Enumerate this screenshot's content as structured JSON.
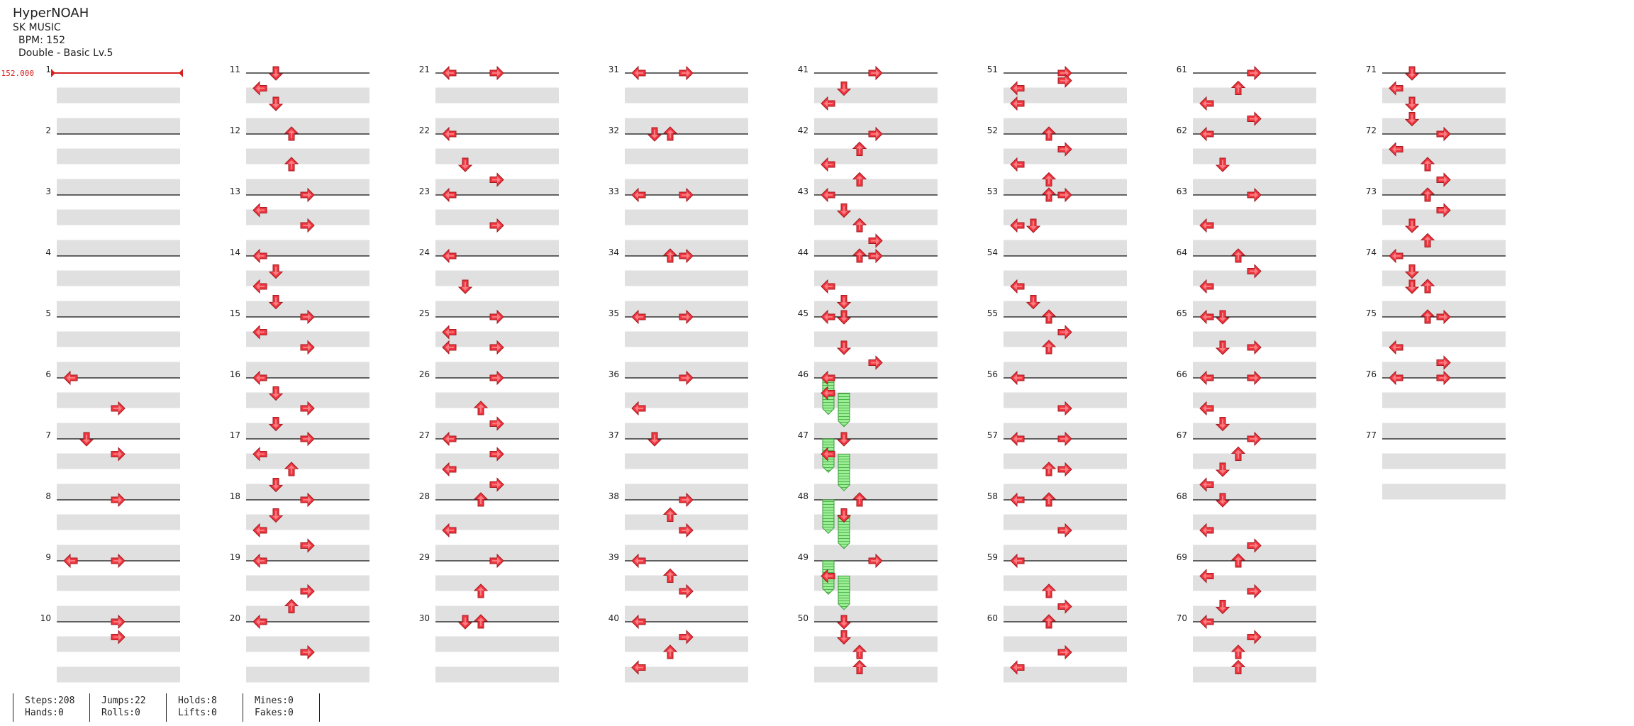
{
  "song": {
    "title": "HyperNOAH",
    "artist": "SK MUSIC",
    "bpm_text": "BPM: 152",
    "difficulty_text": "Double - Basic Lv.5"
  },
  "bpm_marker": "152.000",
  "measure_count": 77,
  "stats": [
    {
      "a": "Steps:208",
      "b": "Hands:0"
    },
    {
      "a": "Jumps:22",
      "b": "Rolls:0"
    },
    {
      "a": "Holds:8",
      "b": "Lifts:0"
    },
    {
      "a": "Mines:0",
      "b": "Fakes:0"
    }
  ],
  "colors": {
    "arrow": "#f0363f",
    "hold": "#8ee88a",
    "lane": "#e0e0e0",
    "bpm": "#d62020"
  },
  "icons": {
    "note": "arrow-icon",
    "hold": "hold-icon"
  },
  "notes": [
    {
      "m": 6,
      "b": 0,
      "d": "left"
    },
    {
      "m": 6,
      "b": 2,
      "d": "right"
    },
    {
      "m": 7,
      "b": 0,
      "d": "down"
    },
    {
      "m": 7,
      "b": 1,
      "d": "right"
    },
    {
      "m": 8,
      "b": 0,
      "d": "right"
    },
    {
      "m": 9,
      "b": 0,
      "d": "right"
    },
    {
      "m": 9,
      "b": 0,
      "d": "left"
    },
    {
      "m": 10,
      "b": 0,
      "d": "right"
    },
    {
      "m": 10,
      "b": 1,
      "d": "right"
    },
    {
      "m": 11,
      "b": 0,
      "d": "down"
    },
    {
      "m": 11,
      "b": 1,
      "d": "left"
    },
    {
      "m": 11,
      "b": 2,
      "d": "down"
    },
    {
      "m": 12,
      "b": 0,
      "d": "up"
    },
    {
      "m": 12,
      "b": 2,
      "d": "up"
    },
    {
      "m": 13,
      "b": 0,
      "d": "right"
    },
    {
      "m": 13,
      "b": 1,
      "d": "left"
    },
    {
      "m": 13,
      "b": 2,
      "d": "right"
    },
    {
      "m": 14,
      "b": 0,
      "d": "left"
    },
    {
      "m": 14,
      "b": 1,
      "d": "down"
    },
    {
      "m": 14,
      "b": 2,
      "d": "left"
    },
    {
      "m": 14,
      "b": 3,
      "d": "down"
    },
    {
      "m": 15,
      "b": 0,
      "d": "right"
    },
    {
      "m": 15,
      "b": 1,
      "d": "left"
    },
    {
      "m": 15,
      "b": 2,
      "d": "right"
    },
    {
      "m": 16,
      "b": 0,
      "d": "left"
    },
    {
      "m": 16,
      "b": 1,
      "d": "down"
    },
    {
      "m": 16,
      "b": 2,
      "d": "right"
    },
    {
      "m": 16,
      "b": 3,
      "d": "down"
    },
    {
      "m": 17,
      "b": 0,
      "d": "right"
    },
    {
      "m": 17,
      "b": 1,
      "d": "left"
    },
    {
      "m": 17,
      "b": 2,
      "d": "up"
    },
    {
      "m": 17,
      "b": 3,
      "d": "down"
    },
    {
      "m": 18,
      "b": 0,
      "d": "right"
    },
    {
      "m": 18,
      "b": 1,
      "d": "down"
    },
    {
      "m": 18,
      "b": 2,
      "d": "left"
    },
    {
      "m": 18,
      "b": 3,
      "d": "right"
    },
    {
      "m": 19,
      "b": 0,
      "d": "left"
    },
    {
      "m": 19,
      "b": 2,
      "d": "right"
    },
    {
      "m": 19,
      "b": 3,
      "d": "up"
    },
    {
      "m": 20,
      "b": 0,
      "d": "left"
    },
    {
      "m": 20,
      "b": 2,
      "d": "right"
    },
    {
      "m": 21,
      "b": 0,
      "d": "left"
    },
    {
      "m": 21,
      "b": 0,
      "d": "right"
    },
    {
      "m": 22,
      "b": 0,
      "d": "left"
    },
    {
      "m": 22,
      "b": 2,
      "d": "down"
    },
    {
      "m": 22,
      "b": 3,
      "d": "right"
    },
    {
      "m": 23,
      "b": 0,
      "d": "left"
    },
    {
      "m": 23,
      "b": 2,
      "d": "right"
    },
    {
      "m": 24,
      "b": 0,
      "d": "left"
    },
    {
      "m": 24,
      "b": 2,
      "d": "down"
    },
    {
      "m": 25,
      "b": 0,
      "d": "right"
    },
    {
      "m": 25,
      "b": 1,
      "d": "left"
    },
    {
      "m": 25,
      "b": 2,
      "d": "left"
    },
    {
      "m": 25,
      "b": 2,
      "d": "right"
    },
    {
      "m": 26,
      "b": 0,
      "d": "right"
    },
    {
      "m": 26,
      "b": 2,
      "d": "up"
    },
    {
      "m": 26,
      "b": 3,
      "d": "right"
    },
    {
      "m": 27,
      "b": 0,
      "d": "left"
    },
    {
      "m": 27,
      "b": 1,
      "d": "right"
    },
    {
      "m": 27,
      "b": 2,
      "d": "left"
    },
    {
      "m": 27,
      "b": 3,
      "d": "right"
    },
    {
      "m": 28,
      "b": 0,
      "d": "up"
    },
    {
      "m": 28,
      "b": 2,
      "d": "left"
    },
    {
      "m": 29,
      "b": 0,
      "d": "right"
    },
    {
      "m": 29,
      "b": 2,
      "d": "up"
    },
    {
      "m": 30,
      "b": 0,
      "d": "down"
    },
    {
      "m": 30,
      "b": 0,
      "d": "up"
    },
    {
      "m": 31,
      "b": 0,
      "d": "right"
    },
    {
      "m": 31,
      "b": 0,
      "d": "left"
    },
    {
      "m": 32,
      "b": 0,
      "d": "down"
    },
    {
      "m": 32,
      "b": 0,
      "d": "up"
    },
    {
      "m": 33,
      "b": 0,
      "d": "left"
    },
    {
      "m": 33,
      "b": 0,
      "d": "right"
    },
    {
      "m": 34,
      "b": 0,
      "d": "up"
    },
    {
      "m": 34,
      "b": 0,
      "d": "right"
    },
    {
      "m": 35,
      "b": 0,
      "d": "right"
    },
    {
      "m": 35,
      "b": 0,
      "d": "left"
    },
    {
      "m": 36,
      "b": 0,
      "d": "right"
    },
    {
      "m": 36,
      "b": 2,
      "d": "left"
    },
    {
      "m": 37,
      "b": 0,
      "d": "down"
    },
    {
      "m": 38,
      "b": 0,
      "d": "right"
    },
    {
      "m": 38,
      "b": 1,
      "d": "up"
    },
    {
      "m": 38,
      "b": 2,
      "d": "right"
    },
    {
      "m": 39,
      "b": 0,
      "d": "left"
    },
    {
      "m": 39,
      "b": 1,
      "d": "up"
    },
    {
      "m": 39,
      "b": 2,
      "d": "right"
    },
    {
      "m": 40,
      "b": 0,
      "d": "left"
    },
    {
      "m": 40,
      "b": 1,
      "d": "right"
    },
    {
      "m": 40,
      "b": 2,
      "d": "up"
    },
    {
      "m": 40,
      "b": 3,
      "d": "left"
    },
    {
      "m": 41,
      "b": 0,
      "d": "right"
    },
    {
      "m": 41,
      "b": 1,
      "d": "down"
    },
    {
      "m": 41,
      "b": 2,
      "d": "left"
    },
    {
      "m": 42,
      "b": 0,
      "d": "right"
    },
    {
      "m": 42,
      "b": 1,
      "d": "up"
    },
    {
      "m": 42,
      "b": 2,
      "d": "left"
    },
    {
      "m": 42,
      "b": 3,
      "d": "up"
    },
    {
      "m": 43,
      "b": 0,
      "d": "left"
    },
    {
      "m": 43,
      "b": 1,
      "d": "down"
    },
    {
      "m": 43,
      "b": 2,
      "d": "up"
    },
    {
      "m": 43,
      "b": 3,
      "d": "right"
    },
    {
      "m": 44,
      "b": 0,
      "d": "up"
    },
    {
      "m": 44,
      "b": 0,
      "d": "right"
    },
    {
      "m": 44,
      "b": 2,
      "d": "left"
    },
    {
      "m": 44,
      "b": 3,
      "d": "down"
    },
    {
      "m": 45,
      "b": 0,
      "d": "left"
    },
    {
      "m": 45,
      "b": 0,
      "d": "down"
    },
    {
      "m": 45,
      "b": 2,
      "d": "down"
    },
    {
      "m": 45,
      "b": 3,
      "d": "right"
    },
    {
      "m": 46,
      "b": 0,
      "d": "left"
    },
    {
      "m": 46,
      "b": 1,
      "d": "left"
    },
    {
      "m": 47,
      "b": 0,
      "d": "down"
    },
    {
      "m": 47,
      "b": 1,
      "d": "left"
    },
    {
      "m": 48,
      "b": 0,
      "d": "up"
    },
    {
      "m": 48,
      "b": 1,
      "d": "down"
    },
    {
      "m": 49,
      "b": 0,
      "d": "right"
    },
    {
      "m": 49,
      "b": 1,
      "d": "left"
    },
    {
      "m": 50,
      "b": 0,
      "d": "down"
    },
    {
      "m": 50,
      "b": 1,
      "d": "down"
    },
    {
      "m": 50,
      "b": 2,
      "d": "up"
    },
    {
      "m": 50,
      "b": 3,
      "d": "up"
    },
    {
      "m": 51,
      "b": 0,
      "d": "right"
    },
    {
      "m": 51,
      "b": 0.5,
      "d": "right"
    },
    {
      "m": 51,
      "b": 1,
      "d": "left"
    },
    {
      "m": 51,
      "b": 2,
      "d": "left"
    },
    {
      "m": 52,
      "b": 0,
      "d": "up"
    },
    {
      "m": 52,
      "b": 1,
      "d": "right"
    },
    {
      "m": 52,
      "b": 2,
      "d": "left"
    },
    {
      "m": 52,
      "b": 3,
      "d": "up"
    },
    {
      "m": 53,
      "b": 0,
      "d": "up"
    },
    {
      "m": 53,
      "b": 0,
      "d": "right"
    },
    {
      "m": 53,
      "b": 2,
      "d": "left"
    },
    {
      "m": 53,
      "b": 2,
      "d": "down"
    },
    {
      "m": 54,
      "b": 2,
      "d": "left"
    },
    {
      "m": 54,
      "b": 3,
      "d": "down"
    },
    {
      "m": 55,
      "b": 0,
      "d": "up"
    },
    {
      "m": 55,
      "b": 1,
      "d": "right"
    },
    {
      "m": 55,
      "b": 2,
      "d": "up"
    },
    {
      "m": 56,
      "b": 0,
      "d": "left"
    },
    {
      "m": 56,
      "b": 2,
      "d": "right"
    },
    {
      "m": 57,
      "b": 0,
      "d": "right"
    },
    {
      "m": 57,
      "b": 0,
      "d": "left"
    },
    {
      "m": 57,
      "b": 2,
      "d": "right"
    },
    {
      "m": 57,
      "b": 2,
      "d": "up"
    },
    {
      "m": 58,
      "b": 0,
      "d": "left"
    },
    {
      "m": 58,
      "b": 0,
      "d": "up"
    },
    {
      "m": 58,
      "b": 2,
      "d": "right"
    },
    {
      "m": 59,
      "b": 0,
      "d": "left"
    },
    {
      "m": 59,
      "b": 2,
      "d": "up"
    },
    {
      "m": 59,
      "b": 3,
      "d": "right"
    },
    {
      "m": 60,
      "b": 0,
      "d": "up"
    },
    {
      "m": 60,
      "b": 2,
      "d": "right"
    },
    {
      "m": 60,
      "b": 3,
      "d": "left"
    },
    {
      "m": 61,
      "b": 0,
      "d": "right"
    },
    {
      "m": 61,
      "b": 1,
      "d": "up"
    },
    {
      "m": 61,
      "b": 2,
      "d": "left"
    },
    {
      "m": 61,
      "b": 3,
      "d": "right"
    },
    {
      "m": 62,
      "b": 0,
      "d": "left"
    },
    {
      "m": 62,
      "b": 2,
      "d": "down"
    },
    {
      "m": 63,
      "b": 0,
      "d": "right"
    },
    {
      "m": 63,
      "b": 2,
      "d": "left"
    },
    {
      "m": 64,
      "b": 0,
      "d": "up"
    },
    {
      "m": 64,
      "b": 1,
      "d": "right"
    },
    {
      "m": 64,
      "b": 2,
      "d": "left"
    },
    {
      "m": 65,
      "b": 0,
      "d": "left"
    },
    {
      "m": 65,
      "b": 0,
      "d": "down"
    },
    {
      "m": 65,
      "b": 2,
      "d": "right"
    },
    {
      "m": 65,
      "b": 2,
      "d": "down"
    },
    {
      "m": 66,
      "b": 0,
      "d": "right"
    },
    {
      "m": 66,
      "b": 0,
      "d": "left"
    },
    {
      "m": 66,
      "b": 2,
      "d": "left"
    },
    {
      "m": 66,
      "b": 3,
      "d": "down"
    },
    {
      "m": 67,
      "b": 0,
      "d": "right"
    },
    {
      "m": 67,
      "b": 1,
      "d": "up"
    },
    {
      "m": 67,
      "b": 2,
      "d": "down"
    },
    {
      "m": 67,
      "b": 3,
      "d": "left"
    },
    {
      "m": 68,
      "b": 0,
      "d": "down"
    },
    {
      "m": 68,
      "b": 2,
      "d": "left"
    },
    {
      "m": 68,
      "b": 3,
      "d": "right"
    },
    {
      "m": 69,
      "b": 0,
      "d": "up"
    },
    {
      "m": 69,
      "b": 1,
      "d": "left"
    },
    {
      "m": 69,
      "b": 2,
      "d": "right"
    },
    {
      "m": 69,
      "b": 3,
      "d": "down"
    },
    {
      "m": 70,
      "b": 0,
      "d": "left"
    },
    {
      "m": 70,
      "b": 1,
      "d": "right"
    },
    {
      "m": 70,
      "b": 2,
      "d": "up"
    },
    {
      "m": 70,
      "b": 3,
      "d": "up"
    },
    {
      "m": 71,
      "b": 0,
      "d": "down"
    },
    {
      "m": 71,
      "b": 1,
      "d": "left"
    },
    {
      "m": 71,
      "b": 2,
      "d": "down"
    },
    {
      "m": 71,
      "b": 3,
      "d": "down"
    },
    {
      "m": 72,
      "b": 0,
      "d": "right"
    },
    {
      "m": 72,
      "b": 1,
      "d": "left"
    },
    {
      "m": 72,
      "b": 2,
      "d": "up"
    },
    {
      "m": 72,
      "b": 3,
      "d": "right"
    },
    {
      "m": 73,
      "b": 0,
      "d": "up"
    },
    {
      "m": 73,
      "b": 1,
      "d": "right"
    },
    {
      "m": 73,
      "b": 2,
      "d": "down"
    },
    {
      "m": 73,
      "b": 3,
      "d": "up"
    },
    {
      "m": 74,
      "b": 0,
      "d": "left"
    },
    {
      "m": 74,
      "b": 1,
      "d": "down"
    },
    {
      "m": 74,
      "b": 2,
      "d": "down"
    },
    {
      "m": 74,
      "b": 2,
      "d": "up"
    },
    {
      "m": 75,
      "b": 0,
      "d": "up"
    },
    {
      "m": 75,
      "b": 0,
      "d": "right"
    },
    {
      "m": 75,
      "b": 2,
      "d": "left"
    },
    {
      "m": 75,
      "b": 3,
      "d": "right"
    },
    {
      "m": 76,
      "b": 0,
      "d": "right"
    },
    {
      "m": 76,
      "b": 0,
      "d": "left"
    }
  ],
  "holds": [
    {
      "m": 46,
      "b": 0,
      "len": 1.2
    },
    {
      "m": 46,
      "b": 1,
      "len": 1.1
    },
    {
      "m": 47,
      "b": 0,
      "len": 1.1
    },
    {
      "m": 47,
      "b": 1,
      "len": 1.2
    },
    {
      "m": 48,
      "b": 0,
      "len": 1.1
    },
    {
      "m": 48,
      "b": 1,
      "len": 1.1
    },
    {
      "m": 49,
      "b": 0,
      "len": 1.1
    },
    {
      "m": 49,
      "b": 1,
      "len": 1.1
    }
  ]
}
